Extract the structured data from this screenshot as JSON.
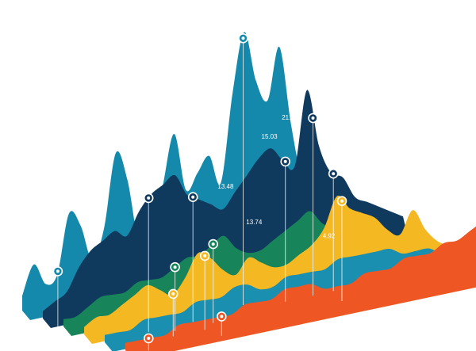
{
  "chart_data": {
    "type": "area",
    "style": "3d stacked ridgeline",
    "x": [
      0,
      1,
      2,
      3,
      4,
      5,
      6,
      7,
      8,
      9,
      10,
      11,
      12,
      13,
      14,
      15,
      16,
      17,
      18,
      19,
      20,
      21,
      22,
      23,
      24,
      25,
      26,
      27,
      28,
      29,
      30
    ],
    "series": [
      {
        "color": "#1589ab",
        "values": [
          2,
          6,
          3,
          4,
          12,
          10,
          5,
          9,
          19,
          15,
          6,
          7,
          13,
          20,
          12,
          14,
          16,
          12,
          24,
          32,
          25,
          22,
          29,
          18,
          10,
          9,
          7,
          6,
          5,
          4,
          3
        ],
        "markers": [
          {
            "x": 3.05,
            "label": ""
          },
          {
            "x": 18.9,
            "label": ""
          }
        ]
      },
      {
        "color": "#0f3a5e",
        "values": [
          1,
          2,
          3,
          6,
          8,
          9,
          10,
          9,
          12,
          14,
          15,
          16,
          13,
          12,
          11,
          10,
          12,
          14,
          16,
          17,
          15,
          14,
          24,
          16,
          12,
          11,
          8,
          7,
          6,
          5,
          4
        ],
        "markers": [
          {
            "x": 8.8,
            "label": ""
          },
          {
            "x": 12.5,
            "label": ""
          },
          {
            "x": 20.2,
            "label": ""
          },
          {
            "x": 22.5,
            "label": ""
          },
          {
            "x": 24.2,
            "label": ""
          }
        ],
        "data_labels": [
          {
            "x": 13.6,
            "y": 19.5,
            "text": "5.67"
          },
          {
            "x": 18.6,
            "y": 18.5,
            "text": "15.03"
          },
          {
            "x": 20.3,
            "y": 20.5,
            "text": "21.27"
          }
        ]
      },
      {
        "color": "#18845a",
        "values": [
          1,
          1,
          2,
          3,
          3,
          3,
          4,
          4,
          4,
          5,
          6,
          6,
          7,
          8,
          6,
          5,
          5,
          6,
          7,
          8,
          9,
          7,
          6,
          6,
          5,
          4,
          3,
          3,
          2,
          2,
          1
        ],
        "markers": [
          {
            "x": 9.05,
            "label": ""
          },
          {
            "x": 12.15,
            "label": ""
          }
        ],
        "data_labels": [
          {
            "x": 12.9,
            "y": 14.5,
            "text": "13.48"
          }
        ]
      },
      {
        "color": "#f4b823",
        "values": [
          1,
          2,
          2,
          3,
          4,
          5,
          4,
          3,
          5,
          8,
          7,
          5,
          4,
          6,
          5,
          4,
          4,
          5,
          6,
          8,
          12,
          10,
          9,
          8,
          6,
          5,
          8,
          5,
          3,
          2,
          1
        ],
        "markers": [
          {
            "x": 7.05,
            "label": ""
          },
          {
            "x": 9.55,
            "label": ""
          },
          {
            "x": 20.4,
            "label": ""
          }
        ],
        "data_labels": [
          {
            "x": 13.2,
            "y": 10.5,
            "text": "13.74"
          },
          {
            "x": 19.25,
            "y": 6.5,
            "text": "4.92"
          }
        ]
      },
      {
        "color": "#1a8fb0",
        "values": [
          1,
          1,
          1,
          2,
          2,
          2,
          2,
          3,
          3,
          3,
          4,
          4,
          3,
          3,
          4,
          4,
          4,
          4,
          5,
          5,
          5,
          5,
          5,
          4,
          4,
          4,
          3,
          3,
          3,
          2,
          1
        ],
        "markers": [],
        "data_labels": []
      },
      {
        "color": "#ee5624",
        "values": [
          1,
          1,
          1,
          1,
          2,
          2,
          2,
          2,
          2,
          3,
          3,
          3,
          4,
          4,
          4,
          3,
          3,
          3,
          4,
          4,
          4,
          5,
          5,
          5,
          6,
          6,
          7,
          8,
          9,
          6,
          3
        ],
        "markers": [
          {
            "x": 1.75,
            "label": ""
          },
          {
            "x": 7.25,
            "label": ""
          },
          {
            "x": 27.3,
            "label": ""
          }
        ],
        "data_labels": []
      }
    ]
  }
}
